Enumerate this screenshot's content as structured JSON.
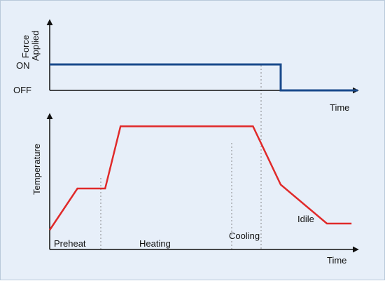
{
  "colors": {
    "background": "#e7eff9",
    "axis": "#111111",
    "force_line": "#1a4a8c",
    "temperature_line": "#e02a2a",
    "guide_line": "#8a8a8a"
  },
  "chart_data": [
    {
      "type": "line",
      "panel": "top",
      "ylabel_line1": "Force",
      "ylabel_line2": "Applied",
      "xlabel": "Time",
      "y_tick_labels": [
        "ON",
        "OFF"
      ],
      "grid": false,
      "x": [
        0,
        0.75,
        0.75,
        1.0
      ],
      "series": [
        {
          "values": [
            "ON",
            "ON",
            "OFF",
            "OFF"
          ]
        }
      ]
    },
    {
      "type": "line",
      "panel": "bottom",
      "ylabel": "Temperature",
      "xlabel": "Time",
      "grid": false,
      "x": [
        0,
        0.09,
        0.18,
        0.23,
        0.66,
        0.75,
        0.9,
        0.98
      ],
      "series": [
        {
          "values": [
            0.15,
            0.47,
            0.47,
            0.95,
            0.95,
            0.5,
            0.2,
            0.2
          ]
        }
      ],
      "phase_labels": [
        "Preheat",
        "Heating",
        "Cooling",
        "Idile"
      ]
    }
  ]
}
